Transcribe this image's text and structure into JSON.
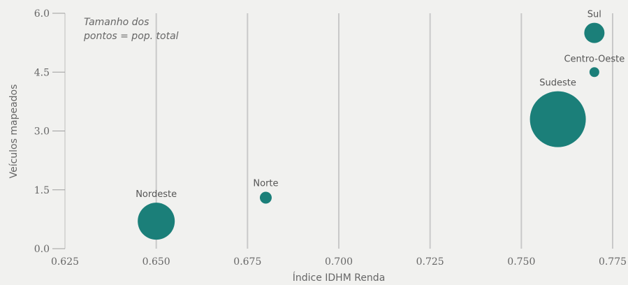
{
  "chart_data": {
    "type": "scatter",
    "xlabel": "Índice IDHM Renda",
    "ylabel": "Veículos mapeados",
    "xlim": [
      0.625,
      0.775
    ],
    "ylim": [
      0,
      6
    ],
    "x_ticks": [
      0.625,
      0.65,
      0.675,
      0.7,
      0.725,
      0.75,
      0.775
    ],
    "x_tick_labels": [
      "0.625",
      "0.650",
      "0.675",
      "0.700",
      "0.725",
      "0.750",
      "0.775"
    ],
    "y_ticks": [
      0,
      1.5,
      3,
      4.5,
      6
    ],
    "y_tick_labels": [
      "0.0",
      "1.5",
      "3.0",
      "4.5",
      "6.0"
    ],
    "grid": "vertical",
    "annotation": [
      "Tamanho dos",
      "pontos = pop. total"
    ],
    "size_encoding": "pop. total",
    "color": "#1b7f79",
    "points": [
      {
        "label": "Nordeste",
        "x": 0.65,
        "y": 0.7,
        "size": 53
      },
      {
        "label": "Norte",
        "x": 0.68,
        "y": 1.3,
        "size": 17
      },
      {
        "label": "Sudeste",
        "x": 0.76,
        "y": 3.3,
        "size": 80
      },
      {
        "label": "Sul",
        "x": 0.77,
        "y": 5.5,
        "size": 29
      },
      {
        "label": "Centro-Oeste",
        "x": 0.77,
        "y": 4.5,
        "size": 14
      }
    ]
  }
}
